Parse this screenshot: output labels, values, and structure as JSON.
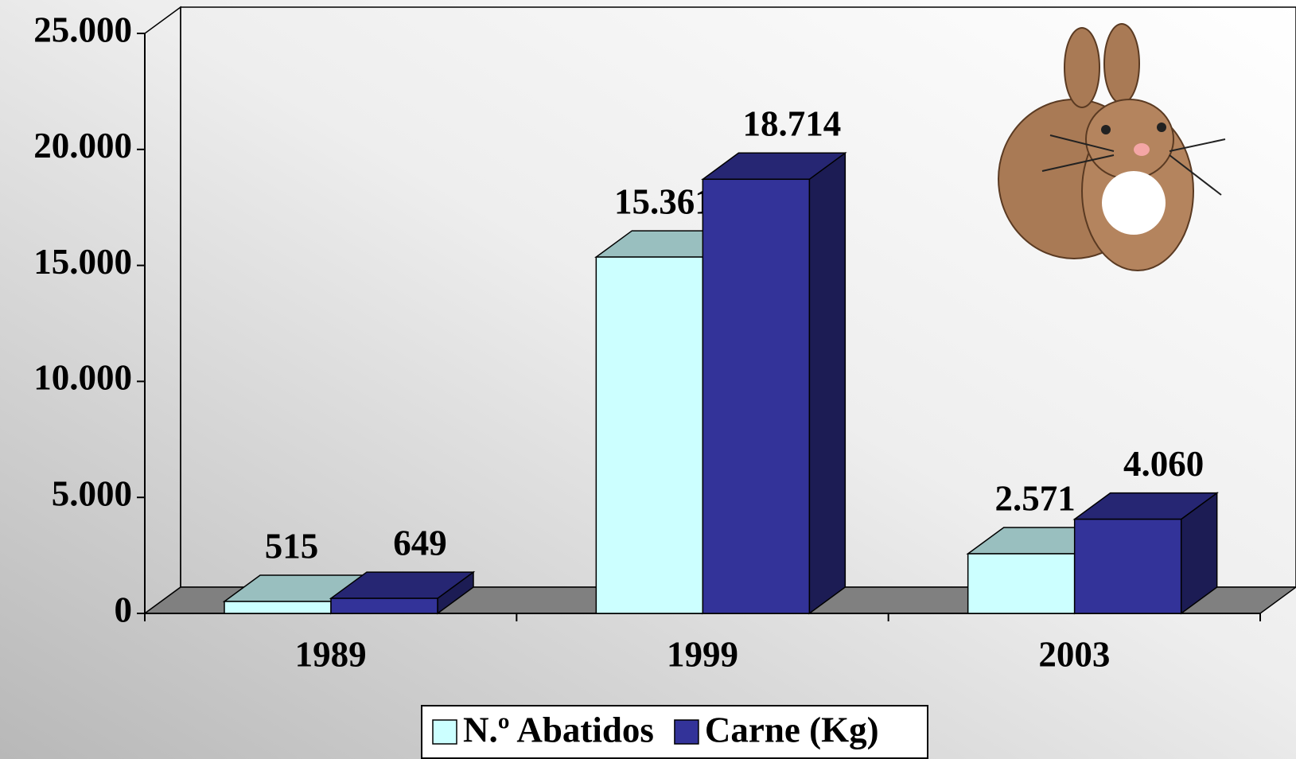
{
  "chart_data": {
    "type": "bar3d",
    "categories": [
      "1989",
      "1999",
      "2003"
    ],
    "series": [
      {
        "name": "N.º Abatidos",
        "color": "#ccffff",
        "values": [
          515,
          15361,
          2571
        ],
        "value_labels": [
          "515",
          "15.361",
          "2.571"
        ]
      },
      {
        "name": "Carne (Kg)",
        "color": "#333399",
        "values": [
          649,
          18714,
          4060
        ],
        "value_labels": [
          "649",
          "18.714",
          "4.060"
        ]
      }
    ],
    "ylim": [
      0,
      25000
    ],
    "yticks": [
      0,
      {
        "value": 5000,
        "label": "5.000"
      },
      {
        "value": 10000,
        "label": "10.000"
      },
      {
        "value": 15000,
        "label": "15.000"
      },
      {
        "value": 20000,
        "label": "20.000"
      },
      {
        "value": 25000,
        "label": "25.000"
      }
    ],
    "grid": false
  }
}
